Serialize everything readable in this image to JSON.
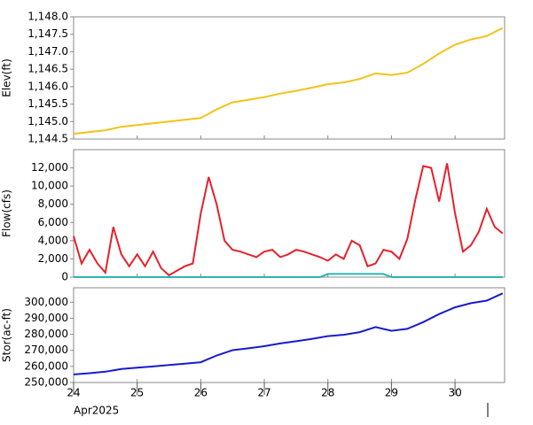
{
  "chart_data": [
    {
      "type": "line",
      "ylabel": "Elev(ft)",
      "x": [
        24,
        24.25,
        24.5,
        24.75,
        25,
        25.25,
        25.5,
        25.75,
        26,
        26.25,
        26.5,
        26.75,
        27,
        27.25,
        27.5,
        27.75,
        28,
        28.25,
        28.5,
        28.75,
        29,
        29.25,
        29.5,
        29.75,
        30,
        30.25,
        30.5,
        30.75
      ],
      "series": [
        {
          "color": "#f2c318",
          "values": [
            1144.65,
            1144.7,
            1144.75,
            1144.85,
            1144.9,
            1144.95,
            1145.0,
            1145.05,
            1145.1,
            1145.35,
            1145.55,
            1145.62,
            1145.7,
            1145.8,
            1145.88,
            1145.97,
            1146.07,
            1146.12,
            1146.22,
            1146.38,
            1146.33,
            1146.4,
            1146.65,
            1146.95,
            1147.2,
            1147.35,
            1147.45,
            1147.68
          ]
        }
      ],
      "xlim": [
        24,
        30.78
      ],
      "ylim": [
        1144.5,
        1148.0
      ],
      "yticks": [
        {
          "value": 1144.5,
          "label": "1,144.5"
        },
        {
          "value": 1145.0,
          "label": "1,145.0"
        },
        {
          "value": 1145.5,
          "label": "1,145.5"
        },
        {
          "value": 1146.0,
          "label": "1,146.0"
        },
        {
          "value": 1146.5,
          "label": "1,146.5"
        },
        {
          "value": 1147.0,
          "label": "1,147.0"
        },
        {
          "value": 1147.5,
          "label": "1,147.5"
        },
        {
          "value": 1148.0,
          "label": "1,148.0"
        }
      ]
    },
    {
      "type": "line",
      "ylabel": "Flow(cfs)",
      "x": [
        24,
        24.125,
        24.25,
        24.375,
        24.5,
        24.625,
        24.75,
        24.875,
        25,
        25.125,
        25.25,
        25.375,
        25.5,
        25.625,
        25.75,
        25.875,
        26,
        26.125,
        26.25,
        26.375,
        26.5,
        26.625,
        26.75,
        26.875,
        27,
        27.125,
        27.25,
        27.375,
        27.5,
        27.625,
        27.75,
        27.875,
        28,
        28.125,
        28.25,
        28.375,
        28.5,
        28.625,
        28.75,
        28.875,
        29,
        29.125,
        29.25,
        29.375,
        29.5,
        29.625,
        29.75,
        29.875,
        30,
        30.125,
        30.25,
        30.375,
        30.5,
        30.625,
        30.75
      ],
      "series": [
        {
          "color": "#e5212b",
          "values": [
            4500,
            1500,
            3000,
            1500,
            500,
            5500,
            2500,
            1200,
            2500,
            1200,
            2800,
            1000,
            200,
            700,
            1200,
            1500,
            7000,
            11000,
            8000,
            4000,
            3000,
            2800,
            2500,
            2200,
            2800,
            3000,
            2200,
            2500,
            3000,
            2800,
            2500,
            2200,
            1800,
            2500,
            2000,
            4000,
            3500,
            1200,
            1500,
            3000,
            2800,
            2000,
            4200,
            8500,
            12200,
            12000,
            8300,
            12500,
            7000,
            2800,
            3500,
            5000,
            7500,
            5500,
            4800
          ]
        },
        {
          "color": "#2ab5b0",
          "values": [
            0,
            0,
            0,
            0,
            0,
            0,
            0,
            0,
            0,
            0,
            0,
            0,
            0,
            0,
            0,
            0,
            0,
            0,
            0,
            0,
            0,
            0,
            0,
            0,
            0,
            0,
            0,
            0,
            0,
            0,
            0,
            0,
            350,
            350,
            350,
            350,
            350,
            350,
            350,
            350,
            0,
            0,
            0,
            0,
            0,
            0,
            0,
            0,
            0,
            0,
            0,
            0,
            0,
            0,
            0
          ]
        }
      ],
      "xlim": [
        24,
        30.78
      ],
      "ylim": [
        0,
        14000
      ],
      "yticks": [
        0,
        {
          "value": 2000,
          "label": "2,000"
        },
        {
          "value": 4000,
          "label": "4,000"
        },
        {
          "value": 6000,
          "label": "6,000"
        },
        {
          "value": 8000,
          "label": "8,000"
        },
        {
          "value": 10000,
          "label": "10,000"
        },
        {
          "value": 12000,
          "label": "12,000"
        }
      ]
    },
    {
      "type": "line",
      "ylabel": "Stor(ac-ft)",
      "x": [
        24,
        24.25,
        24.5,
        24.75,
        25,
        25.25,
        25.5,
        25.75,
        26,
        26.25,
        26.5,
        26.75,
        27,
        27.25,
        27.5,
        27.75,
        28,
        28.25,
        28.5,
        28.75,
        29,
        29.25,
        29.5,
        29.75,
        30,
        30.25,
        30.5,
        30.75
      ],
      "series": [
        {
          "color": "#1a1acc",
          "values": [
            255000,
            255800,
            256700,
            258400,
            259200,
            260000,
            260900,
            261700,
            262600,
            266800,
            270100,
            271300,
            272600,
            274300,
            275700,
            277200,
            278900,
            279700,
            281400,
            284500,
            282200,
            283400,
            287600,
            292600,
            296800,
            299400,
            301000,
            305500
          ]
        }
      ],
      "xlim": [
        24,
        30.78
      ],
      "ylim": [
        250000,
        309000
      ],
      "yticks": [
        {
          "value": 250000,
          "label": "250,000"
        },
        {
          "value": 260000,
          "label": "260,000"
        },
        {
          "value": 270000,
          "label": "270,000"
        },
        {
          "value": 280000,
          "label": "280,000"
        },
        {
          "value": 290000,
          "label": "290,000"
        },
        {
          "value": 300000,
          "label": "300,000"
        }
      ],
      "xticks": [
        24,
        25,
        26,
        27,
        28,
        29,
        30
      ],
      "xcaption": "Apr2025"
    }
  ]
}
